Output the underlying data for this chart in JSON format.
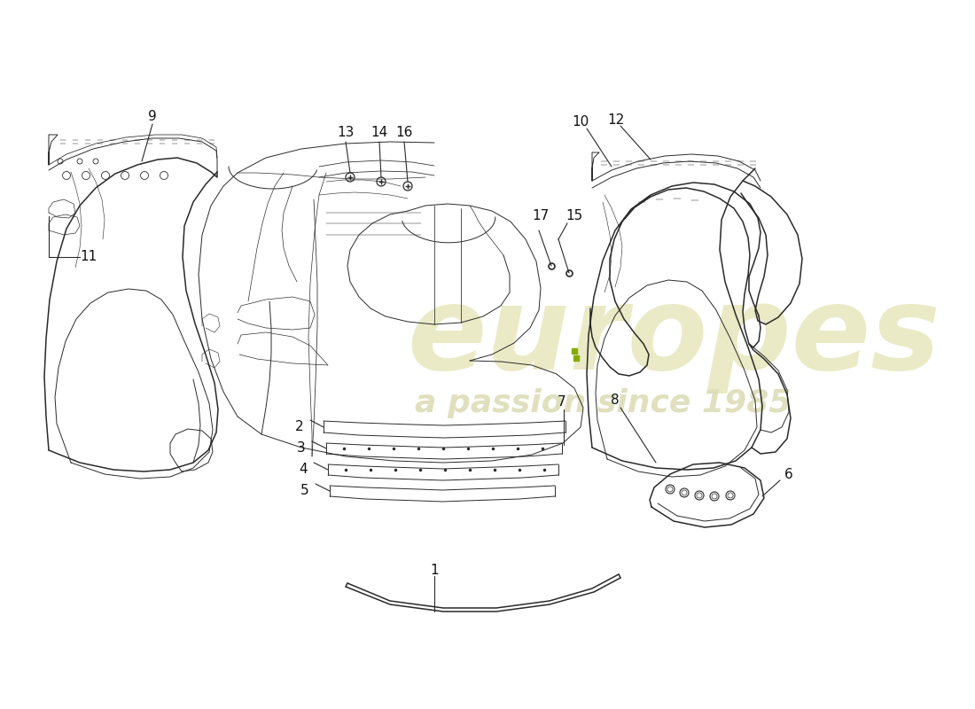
{
  "background_color": "#ffffff",
  "line_color": "#2a2a2a",
  "watermark_color1": "#e8e8c0",
  "watermark_color2": "#ddddb8",
  "fig_width": 11.0,
  "fig_height": 8.0,
  "dpi": 100,
  "label_fontsize": 11,
  "watermark1": "europes",
  "watermark2": "a passion since 1985"
}
